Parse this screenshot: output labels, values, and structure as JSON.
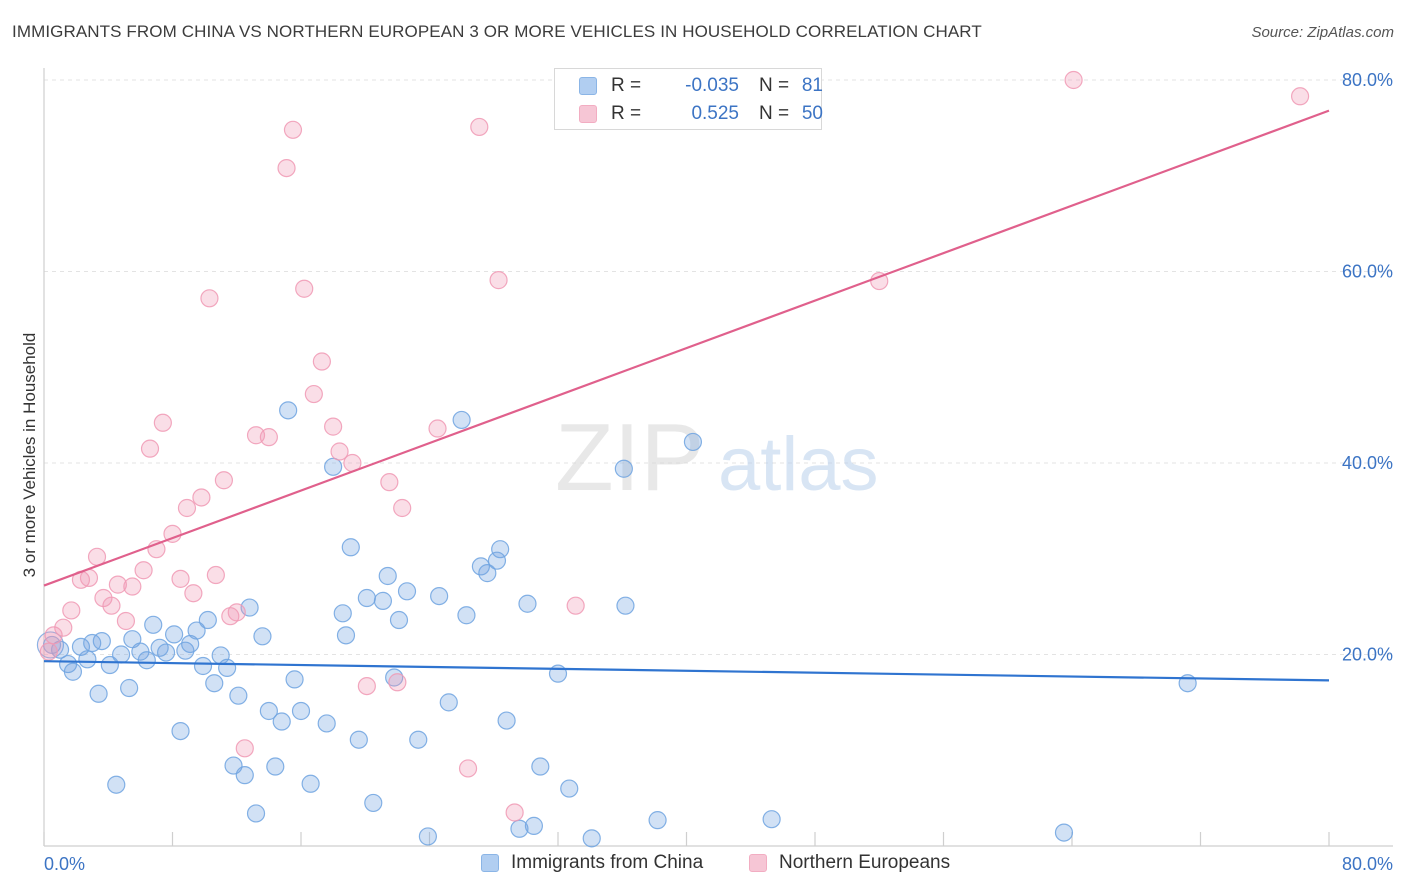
{
  "header": {
    "title": "IMMIGRANTS FROM CHINA VS NORTHERN EUROPEAN 3 OR MORE VEHICLES IN HOUSEHOLD CORRELATION CHART",
    "source": "Source: ZipAtlas.com"
  },
  "watermark": {
    "zip": "ZIP",
    "atlas": "atlas"
  },
  "stats": [
    {
      "r_label": "R =",
      "r_value": "-0.035",
      "n_label": "N =",
      "n_value": "81",
      "color": "#9ec2ee"
    },
    {
      "r_label": "R =",
      "r_value": "0.525",
      "n_label": "N =",
      "n_value": "50",
      "color": "#f5b8cb"
    }
  ],
  "legend": [
    {
      "label": "Immigrants from China",
      "color": "#9ec2ee"
    },
    {
      "label": "Northern Europeans",
      "color": "#f5b8cb"
    }
  ],
  "chart_data": {
    "type": "scatter",
    "title": "IMMIGRANTS FROM CHINA VS NORTHERN EUROPEAN 3 OR MORE VEHICLES IN HOUSEHOLD CORRELATION CHART",
    "xlabel": "",
    "ylabel": "3 or more Vehicles in Household",
    "xlim": [
      0,
      80
    ],
    "ylim": [
      0,
      80
    ],
    "x_tick_labels": [
      "0.0%",
      "80.0%"
    ],
    "y_ticks": [
      20,
      40,
      60,
      80
    ],
    "y_tick_labels": [
      "20.0%",
      "40.0%",
      "60.0%",
      "80.0%"
    ],
    "grid": true,
    "series": [
      {
        "name": "Immigrants from China",
        "color": "#6fa3e0",
        "trend_color": "#2f74d0",
        "trend": {
          "x": [
            0,
            80
          ],
          "y": [
            19.3,
            17.3
          ]
        },
        "points": [
          [
            0.5,
            21
          ],
          [
            1,
            20.5
          ],
          [
            1.5,
            19
          ],
          [
            1.8,
            18.2
          ],
          [
            2.3,
            20.8
          ],
          [
            2.7,
            19.5
          ],
          [
            3,
            21.2
          ],
          [
            3.4,
            15.9
          ],
          [
            3.6,
            21.4
          ],
          [
            4.1,
            18.9
          ],
          [
            4.5,
            6.4
          ],
          [
            4.8,
            20
          ],
          [
            5.3,
            16.5
          ],
          [
            5.5,
            21.6
          ],
          [
            6,
            20.3
          ],
          [
            6.4,
            19.4
          ],
          [
            6.8,
            23.1
          ],
          [
            7.2,
            20.7
          ],
          [
            7.6,
            20.2
          ],
          [
            8.1,
            22.1
          ],
          [
            8.5,
            12
          ],
          [
            8.8,
            20.4
          ],
          [
            9.1,
            21.1
          ],
          [
            9.5,
            22.5
          ],
          [
            9.9,
            18.8
          ],
          [
            10.2,
            23.6
          ],
          [
            10.6,
            17
          ],
          [
            11,
            19.9
          ],
          [
            11.4,
            18.6
          ],
          [
            11.8,
            8.4
          ],
          [
            12.1,
            15.7
          ],
          [
            12.5,
            7.4
          ],
          [
            12.8,
            24.9
          ],
          [
            13.2,
            3.4
          ],
          [
            13.6,
            21.9
          ],
          [
            14,
            14.1
          ],
          [
            14.4,
            8.3
          ],
          [
            14.8,
            13
          ],
          [
            15.2,
            45.5
          ],
          [
            15.6,
            17.4
          ],
          [
            16,
            14.1
          ],
          [
            16.6,
            6.5
          ],
          [
            17.6,
            12.8
          ],
          [
            18,
            39.6
          ],
          [
            18.6,
            24.3
          ],
          [
            18.8,
            22
          ],
          [
            19.1,
            31.2
          ],
          [
            19.6,
            11.1
          ],
          [
            20.1,
            25.9
          ],
          [
            20.5,
            4.5
          ],
          [
            21.1,
            25.6
          ],
          [
            21.4,
            28.2
          ],
          [
            21.8,
            17.6
          ],
          [
            22.1,
            23.6
          ],
          [
            22.6,
            26.6
          ],
          [
            23.3,
            11.1
          ],
          [
            23.9,
            1
          ],
          [
            24.6,
            26.1
          ],
          [
            25.2,
            15
          ],
          [
            26,
            44.5
          ],
          [
            26.3,
            24.1
          ],
          [
            27.2,
            29.2
          ],
          [
            27.6,
            28.5
          ],
          [
            28.2,
            29.8
          ],
          [
            28.4,
            31
          ],
          [
            28.8,
            13.1
          ],
          [
            29.6,
            1.8
          ],
          [
            30.1,
            25.3
          ],
          [
            30.5,
            2.1
          ],
          [
            30.9,
            8.3
          ],
          [
            32,
            18
          ],
          [
            32.7,
            6
          ],
          [
            34.1,
            0.8
          ],
          [
            36.1,
            39.4
          ],
          [
            36.2,
            25.1
          ],
          [
            38.2,
            2.7
          ],
          [
            40.4,
            42.2
          ],
          [
            45.3,
            2.8
          ],
          [
            63.5,
            1.4
          ],
          [
            71.2,
            17
          ]
        ]
      },
      {
        "name": "Northern Europeans",
        "color": "#f099b4",
        "trend_color": "#e0608c",
        "trend": {
          "x": [
            0,
            80
          ],
          "y": [
            27.2,
            76.8
          ]
        },
        "points": [
          [
            0.3,
            20.3
          ],
          [
            0.6,
            22
          ],
          [
            1.2,
            22.8
          ],
          [
            1.7,
            24.6
          ],
          [
            2.3,
            27.8
          ],
          [
            2.8,
            28
          ],
          [
            3.3,
            30.2
          ],
          [
            3.7,
            25.9
          ],
          [
            4.2,
            25.1
          ],
          [
            4.6,
            27.3
          ],
          [
            5.1,
            23.5
          ],
          [
            5.5,
            27.1
          ],
          [
            6.2,
            28.8
          ],
          [
            6.6,
            41.5
          ],
          [
            7,
            31
          ],
          [
            7.4,
            44.2
          ],
          [
            8,
            32.6
          ],
          [
            8.5,
            27.9
          ],
          [
            8.9,
            35.3
          ],
          [
            9.3,
            26.4
          ],
          [
            9.8,
            36.4
          ],
          [
            10.3,
            57.2
          ],
          [
            10.7,
            28.3
          ],
          [
            11.2,
            38.2
          ],
          [
            11.6,
            24
          ],
          [
            12,
            24.4
          ],
          [
            12.5,
            10.2
          ],
          [
            13.2,
            42.9
          ],
          [
            14,
            42.7
          ],
          [
            15.1,
            70.8
          ],
          [
            15.5,
            74.8
          ],
          [
            16.2,
            58.2
          ],
          [
            16.8,
            47.2
          ],
          [
            17.3,
            50.6
          ],
          [
            18,
            43.8
          ],
          [
            18.4,
            41.2
          ],
          [
            19.2,
            40
          ],
          [
            20.1,
            16.7
          ],
          [
            21.5,
            38
          ],
          [
            22,
            17.1
          ],
          [
            22.3,
            35.3
          ],
          [
            24.5,
            43.6
          ],
          [
            26.4,
            8.1
          ],
          [
            27.1,
            75.1
          ],
          [
            28.3,
            59.1
          ],
          [
            29.3,
            3.5
          ],
          [
            33.1,
            25.1
          ],
          [
            52,
            59
          ],
          [
            64.1,
            80
          ],
          [
            78.2,
            78.3
          ]
        ]
      }
    ]
  }
}
